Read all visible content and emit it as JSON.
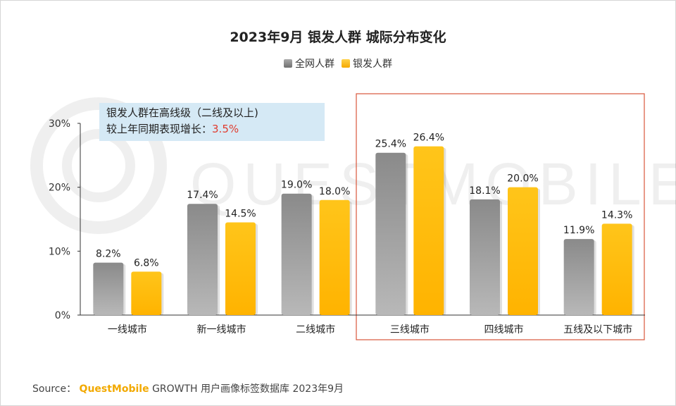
{
  "chart_data": {
    "type": "bar",
    "title": "2023年9月 银发人群 城际分布变化",
    "categories": [
      "一线城市",
      "新一线城市",
      "二线城市",
      "三线城市",
      "四线城市",
      "五线及以下城市"
    ],
    "series": [
      {
        "name": "全网人群",
        "values": [
          8.2,
          17.4,
          19.0,
          25.4,
          18.1,
          11.9
        ],
        "labels": [
          "8.2%",
          "17.4%",
          "19.0%",
          "25.4%",
          "18.1%",
          "11.9%"
        ]
      },
      {
        "name": "银发人群",
        "values": [
          6.8,
          14.5,
          18.0,
          26.4,
          20.0,
          14.3
        ],
        "labels": [
          "6.8%",
          "14.5%",
          "18.0%",
          "26.4%",
          "20.0%",
          "14.3%"
        ]
      }
    ],
    "yticks": [
      {
        "value": 0,
        "label": "0%"
      },
      {
        "value": 10,
        "label": "10%"
      },
      {
        "value": 20,
        "label": "20%"
      },
      {
        "value": 30,
        "label": "30%"
      }
    ],
    "ylim": [
      0,
      30
    ],
    "grid": false,
    "highlight_categories": [
      "三线城市",
      "四线城市",
      "五线及以下城市"
    ]
  },
  "colors": {
    "series_0": "#8c8c8c",
    "series_1": "#ffc000",
    "highlight_border": "#d9563b",
    "annotation_emphasis": "#e03c2f"
  },
  "annotation": {
    "line1": "银发人群在高线级（二线及以上)",
    "line2": "较上年同期表现增长：",
    "value": "3.5%"
  },
  "source": {
    "label": "Source：",
    "brand": "QuestMobile",
    "text": "GROWTH 用户画像标签数据库 2023年9月"
  }
}
